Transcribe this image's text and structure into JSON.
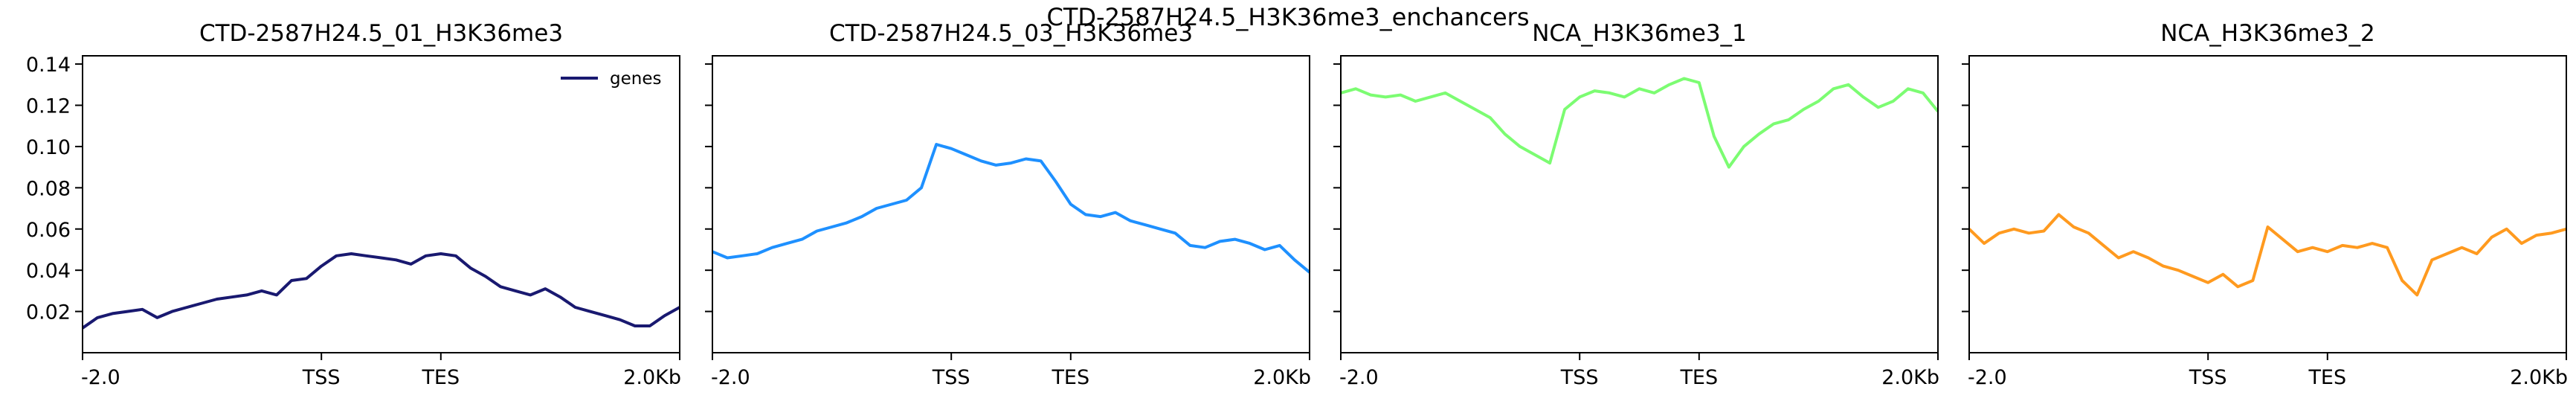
{
  "figure_title": "CTD-2587H24.5_H3K36me3_enchancers",
  "chart_data": [
    {
      "type": "line",
      "title": "CTD-2587H24.5_01_H3K36me3",
      "x_ticks": [
        "-2.0",
        "TSS",
        "TES",
        "2.0Kb"
      ],
      "y_ticks": [
        "0.02",
        "0.04",
        "0.06",
        "0.08",
        "0.10",
        "0.12",
        "0.14"
      ],
      "ylim": [
        0.0,
        0.144
      ],
      "legend": {
        "position": "top-right",
        "entries": [
          "genes"
        ]
      },
      "series": [
        {
          "name": "genes",
          "color": "#191970",
          "values": [
            0.012,
            0.017,
            0.019,
            0.02,
            0.021,
            0.017,
            0.02,
            0.022,
            0.024,
            0.026,
            0.027,
            0.028,
            0.03,
            0.028,
            0.035,
            0.036,
            0.042,
            0.047,
            0.048,
            0.047,
            0.046,
            0.045,
            0.043,
            0.047,
            0.048,
            0.047,
            0.041,
            0.037,
            0.032,
            0.03,
            0.028,
            0.031,
            0.027,
            0.022,
            0.02,
            0.018,
            0.016,
            0.013,
            0.013,
            0.018,
            0.022
          ]
        }
      ]
    },
    {
      "type": "line",
      "title": "CTD-2587H24.5_03_H3K36me3",
      "x_ticks": [
        "-2.0",
        "TSS",
        "TES",
        "2.0Kb"
      ],
      "ylim": [
        0.0,
        0.144
      ],
      "series": [
        {
          "color": "#1e90ff",
          "values": [
            0.049,
            0.046,
            0.047,
            0.048,
            0.051,
            0.053,
            0.055,
            0.059,
            0.061,
            0.063,
            0.066,
            0.07,
            0.072,
            0.074,
            0.08,
            0.101,
            0.099,
            0.096,
            0.093,
            0.091,
            0.092,
            0.094,
            0.093,
            0.083,
            0.072,
            0.067,
            0.066,
            0.068,
            0.064,
            0.062,
            0.06,
            0.058,
            0.052,
            0.051,
            0.054,
            0.055,
            0.053,
            0.05,
            0.052,
            0.045,
            0.039
          ]
        }
      ]
    },
    {
      "type": "line",
      "title": "NCA_H3K36me3_1",
      "x_ticks": [
        "-2.0",
        "TSS",
        "TES",
        "2.0Kb"
      ],
      "ylim": [
        0.0,
        0.144
      ],
      "series": [
        {
          "color": "#7cfc72",
          "values": [
            0.126,
            0.128,
            0.125,
            0.124,
            0.125,
            0.122,
            0.124,
            0.126,
            0.122,
            0.118,
            0.114,
            0.106,
            0.1,
            0.096,
            0.092,
            0.118,
            0.124,
            0.127,
            0.126,
            0.124,
            0.128,
            0.126,
            0.13,
            0.133,
            0.131,
            0.105,
            0.09,
            0.1,
            0.106,
            0.111,
            0.113,
            0.118,
            0.122,
            0.128,
            0.13,
            0.124,
            0.119,
            0.122,
            0.128,
            0.126,
            0.117
          ]
        }
      ]
    },
    {
      "type": "line",
      "title": "NCA_H3K36me3_2",
      "x_ticks": [
        "-2.0",
        "TSS",
        "TES",
        "2.0Kb"
      ],
      "ylim": [
        0.0,
        0.144
      ],
      "series": [
        {
          "color": "#ff9a1f",
          "values": [
            0.06,
            0.053,
            0.058,
            0.06,
            0.058,
            0.059,
            0.067,
            0.061,
            0.058,
            0.052,
            0.046,
            0.049,
            0.046,
            0.042,
            0.04,
            0.037,
            0.034,
            0.038,
            0.032,
            0.035,
            0.061,
            0.055,
            0.049,
            0.051,
            0.049,
            0.052,
            0.051,
            0.053,
            0.051,
            0.035,
            0.028,
            0.045,
            0.048,
            0.051,
            0.048,
            0.056,
            0.06,
            0.053,
            0.057,
            0.058,
            0.06
          ]
        }
      ]
    }
  ]
}
